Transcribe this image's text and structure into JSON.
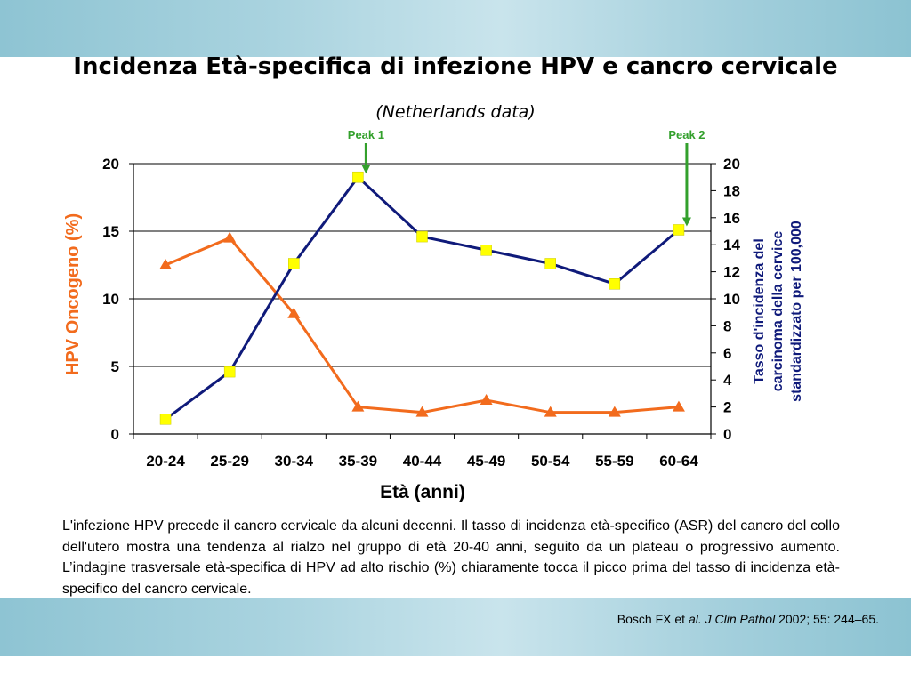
{
  "slide": {
    "title": "Incidenza Età-specifica di infezione HPV e cancro cervicale",
    "subtitle": "(Netherlands data)",
    "caption": "L'infezione HPV precede il cancro cervicale da alcuni decenni. Il tasso di incidenza età-specifico (ASR) del cancro del collo dell'utero mostra una tendenza al rialzo nel gruppo di età 20-40 anni, seguito da un plateau o progressivo aumento. L’indagine trasversale età-specifica di HPV ad alto rischio (%) chiaramente tocca il picco prima del tasso di incidenza età-specifico del cancro cervicale.",
    "citation": {
      "prefix": "Bosch FX et ",
      "journal": "al. J Clin Pathol",
      "suffix": " 2002; 55: 244–65."
    }
  },
  "chart_data": {
    "type": "line",
    "categories": [
      "20-24",
      "25-29",
      "30-34",
      "35-39",
      "40-44",
      "45-49",
      "50-54",
      "55-59",
      "60-64"
    ],
    "xlabel": "Età (anni)",
    "ylabel": "HPV Oncogeno (%)",
    "y2label": [
      "Tasso d'incidenza del",
      "carcinoma della cervice",
      "standardizzato per 100,000"
    ],
    "ylim": [
      0,
      20
    ],
    "yticks": [
      0,
      5,
      10,
      15,
      20
    ],
    "y2lim": [
      0,
      20
    ],
    "y2ticks": [
      0,
      2,
      4,
      6,
      8,
      10,
      12,
      14,
      16,
      18,
      20
    ],
    "grid": "horizontal",
    "series": [
      {
        "axis": "left",
        "color": "#f26b1d",
        "marker": "triangle",
        "values": [
          12.5,
          14.5,
          8.9,
          2.0,
          1.6,
          2.5,
          1.6,
          1.6,
          2.0
        ]
      },
      {
        "axis": "right",
        "color": "#0f1a7a",
        "marker": "square",
        "marker_color": "#ffff00",
        "values": [
          1.1,
          4.6,
          12.6,
          19.0,
          14.6,
          13.6,
          12.6,
          11.1,
          15.1
        ]
      }
    ],
    "annotations": [
      {
        "label": "Peak 1",
        "category": "35-39",
        "color": "#33a02c"
      },
      {
        "label": "Peak 2",
        "category": "60-64",
        "color": "#33a02c"
      }
    ]
  }
}
